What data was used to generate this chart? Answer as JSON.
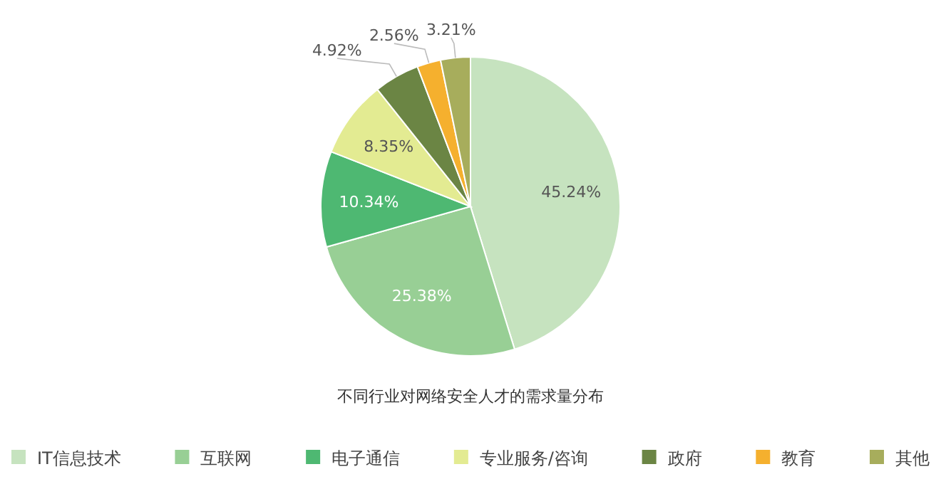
{
  "chart_data": {
    "type": "pie",
    "title": "不同行业对网络安全人才的需求量分布",
    "categories": [
      "IT信息技术",
      "互联网",
      "电子通信",
      "专业服务/咨询",
      "政府",
      "教育",
      "其他"
    ],
    "values": [
      45.24,
      25.38,
      10.34,
      8.35,
      4.92,
      2.56,
      3.21
    ],
    "colors": [
      "#c6e3bf",
      "#98cf95",
      "#4eb872",
      "#e3eb92",
      "#6b8544",
      "#f5b02e",
      "#a7ad5c"
    ],
    "value_labels": [
      "45.24%",
      "25.38%",
      "10.34%",
      "8.35%",
      "4.92%",
      "2.56%",
      "3.21%"
    ],
    "legend": "bottom"
  }
}
